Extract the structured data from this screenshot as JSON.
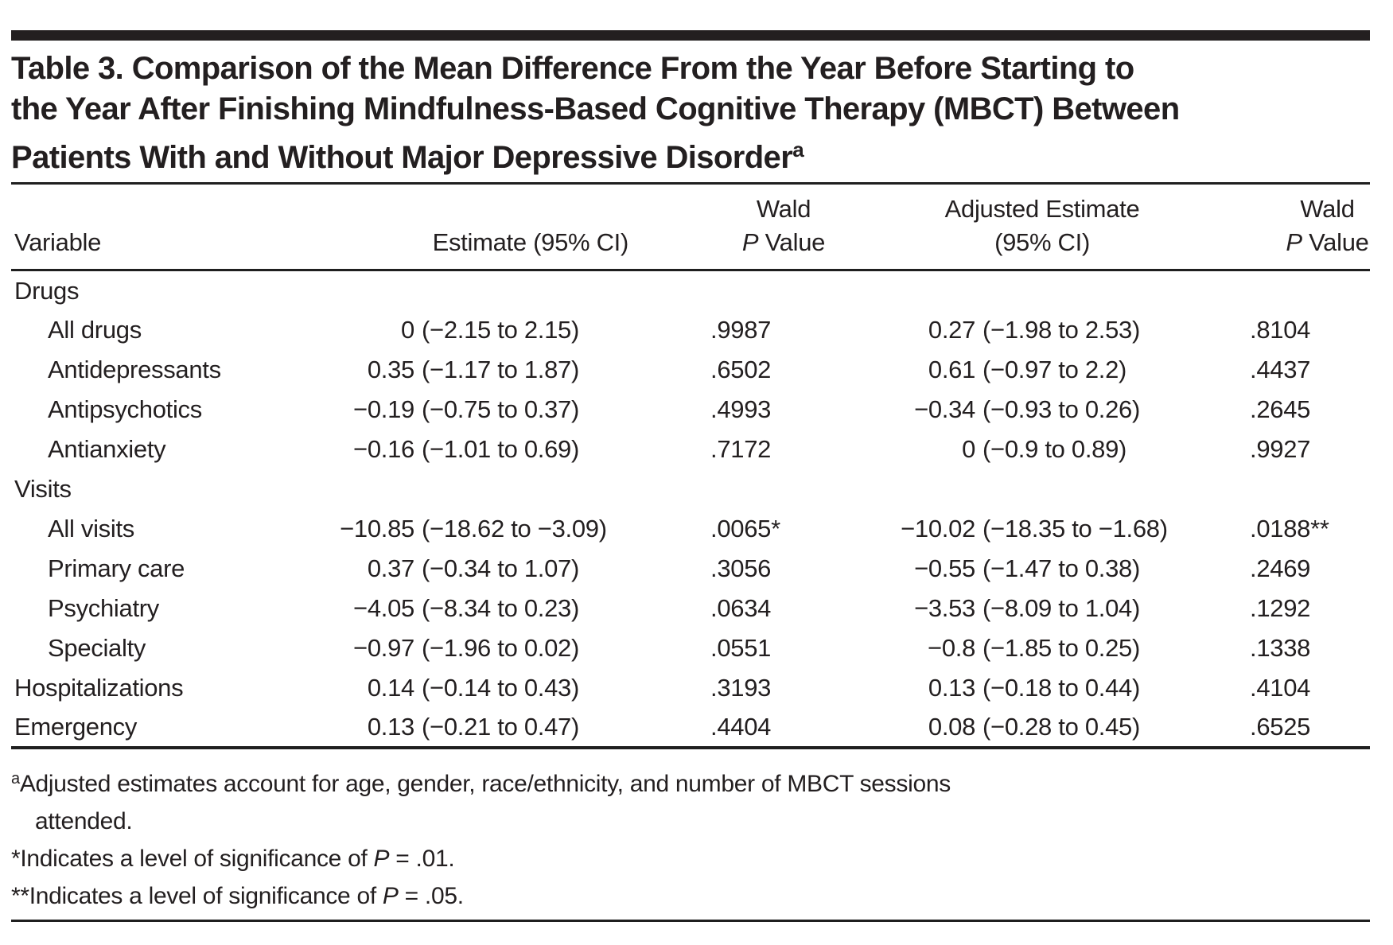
{
  "page": {
    "background": "#ffffff",
    "text_color": "#231f20",
    "rule_color": "#1f1f1f"
  },
  "title": {
    "line1": "Table 3. Comparison of the Mean Difference From the Year Before Starting to",
    "line2": "the Year After Finishing Mindfulness-Based Cognitive Therapy (MBCT) Between",
    "line3": "Patients With and Without Major Depressive Disorder",
    "superscript": "a"
  },
  "table": {
    "header": {
      "variable": "Variable",
      "estimate": "Estimate (95% CI)",
      "wald_p_1": {
        "line1": "Wald",
        "p_italic": "P",
        "value": " Value"
      },
      "adjusted": {
        "line1": "Adjusted Estimate",
        "line2": "(95% CI)"
      },
      "wald_p_2": {
        "line1": "Wald",
        "p_italic": "P",
        "value": " Value"
      }
    },
    "rows": [
      {
        "type": "section",
        "label": "Drugs"
      },
      {
        "type": "item",
        "indent": true,
        "label": "All drugs",
        "estimate": "0",
        "estimate_ci": "(−2.15 to 2.15)",
        "wald_p": ".9987",
        "adjusted": "0.27",
        "adjusted_ci": "(−1.98 to 2.53)",
        "adj_wald_p": ".8104"
      },
      {
        "type": "item",
        "indent": true,
        "label": "Antidepressants",
        "estimate": "0.35",
        "estimate_ci": "(−1.17 to 1.87)",
        "wald_p": ".6502",
        "adjusted": "0.61",
        "adjusted_ci": "(−0.97 to 2.2)",
        "adj_wald_p": ".4437"
      },
      {
        "type": "item",
        "indent": true,
        "label": "Antipsychotics",
        "estimate": "−0.19",
        "estimate_ci": "(−0.75 to 0.37)",
        "wald_p": ".4993",
        "adjusted": "−0.34",
        "adjusted_ci": "(−0.93 to 0.26)",
        "adj_wald_p": ".2645"
      },
      {
        "type": "item",
        "indent": true,
        "label": "Antianxiety",
        "estimate": "−0.16",
        "estimate_ci": "(−1.01 to 0.69)",
        "wald_p": ".7172",
        "adjusted": "0",
        "adjusted_ci": "(−0.9 to 0.89)",
        "adj_wald_p": ".9927"
      },
      {
        "type": "section",
        "label": "Visits"
      },
      {
        "type": "item",
        "indent": true,
        "label": "All visits",
        "estimate": "−10.85",
        "estimate_ci": "(−18.62 to −3.09)",
        "wald_p": ".0065*",
        "adjusted": "−10.02",
        "adjusted_ci": "(−18.35 to −1.68)",
        "adj_wald_p": ".0188**"
      },
      {
        "type": "item",
        "indent": true,
        "label": "Primary care",
        "estimate": "0.37",
        "estimate_ci": "(−0.34 to 1.07)",
        "wald_p": ".3056",
        "adjusted": "−0.55",
        "adjusted_ci": "(−1.47 to 0.38)",
        "adj_wald_p": ".2469"
      },
      {
        "type": "item",
        "indent": true,
        "label": "Psychiatry",
        "estimate": "−4.05",
        "estimate_ci": "(−8.34 to 0.23)",
        "wald_p": ".0634",
        "adjusted": "−3.53",
        "adjusted_ci": "(−8.09 to 1.04)",
        "adj_wald_p": ".1292"
      },
      {
        "type": "item",
        "indent": true,
        "label": "Specialty",
        "estimate": "−0.97",
        "estimate_ci": "(−1.96 to 0.02)",
        "wald_p": ".0551",
        "adjusted": "−0.8",
        "adjusted_ci": "(−1.85 to 0.25)",
        "adj_wald_p": ".1338"
      },
      {
        "type": "item",
        "indent": false,
        "label": "Hospitalizations",
        "estimate": "0.14",
        "estimate_ci": "(−0.14 to 0.43)",
        "wald_p": ".3193",
        "adjusted": "0.13",
        "adjusted_ci": "(−0.18 to 0.44)",
        "adj_wald_p": ".4104"
      },
      {
        "type": "item",
        "indent": false,
        "label": "Emergency",
        "estimate": "0.13",
        "estimate_ci": "(−0.21 to 0.47)",
        "wald_p": ".4404",
        "adjusted": "0.08",
        "adjusted_ci": "(−0.28 to 0.45)",
        "adj_wald_p": ".6525"
      }
    ]
  },
  "footnotes": {
    "a": {
      "sup": "a",
      "text": "Adjusted estimates account for age, gender, race/ethnicity, and number of MBCT sessions",
      "text_continued": "attended."
    },
    "star": {
      "prefix": "*Indicates a level of significance of ",
      "p_italic": "P",
      "suffix": " = .01."
    },
    "double_star": {
      "prefix": "**Indicates a level of significance of ",
      "p_italic": "P",
      "suffix": " = .05."
    }
  }
}
